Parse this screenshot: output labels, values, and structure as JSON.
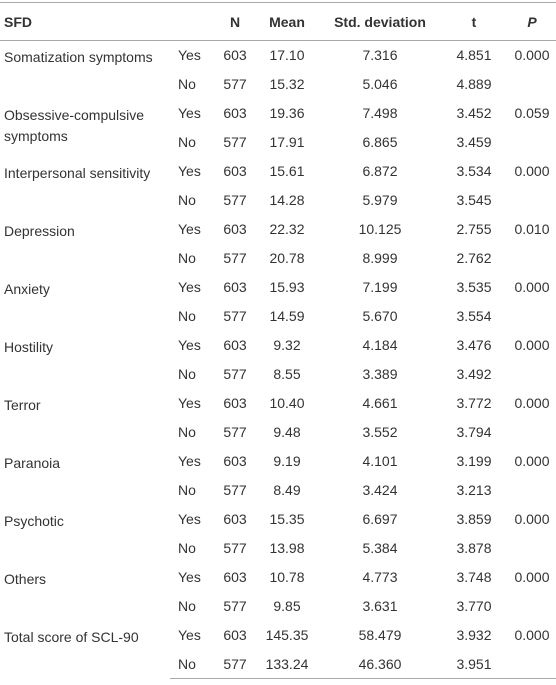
{
  "table": {
    "header": {
      "sfd": "SFD",
      "n": "N",
      "mean": "Mean",
      "sd": "Std. deviation",
      "t": "t",
      "p": "P"
    },
    "groups": [
      {
        "label": "Somatization symptoms",
        "p": "0.000",
        "rows": [
          {
            "group": "Yes",
            "n": "603",
            "mean": "17.10",
            "sd": "7.316",
            "t": "4.851"
          },
          {
            "group": "No",
            "n": "577",
            "mean": "15.32",
            "sd": "5.046",
            "t": "4.889"
          }
        ]
      },
      {
        "label": "Obsessive-compulsive symptoms",
        "p": "0.059",
        "rows": [
          {
            "group": "Yes",
            "n": "603",
            "mean": "19.36",
            "sd": "7.498",
            "t": "3.452"
          },
          {
            "group": "No",
            "n": "577",
            "mean": "17.91",
            "sd": "6.865",
            "t": "3.459"
          }
        ]
      },
      {
        "label": "Interpersonal sensitivity",
        "p": "0.000",
        "rows": [
          {
            "group": "Yes",
            "n": "603",
            "mean": "15.61",
            "sd": "6.872",
            "t": "3.534"
          },
          {
            "group": "No",
            "n": "577",
            "mean": "14.28",
            "sd": "5.979",
            "t": "3.545"
          }
        ]
      },
      {
        "label": "Depression",
        "p": "0.010",
        "rows": [
          {
            "group": "Yes",
            "n": "603",
            "mean": "22.32",
            "sd": "10.125",
            "t": "2.755"
          },
          {
            "group": "No",
            "n": "577",
            "mean": "20.78",
            "sd": "8.999",
            "t": "2.762"
          }
        ]
      },
      {
        "label": "Anxiety",
        "p": "0.000",
        "rows": [
          {
            "group": "Yes",
            "n": "603",
            "mean": "15.93",
            "sd": "7.199",
            "t": "3.535"
          },
          {
            "group": "No",
            "n": "577",
            "mean": "14.59",
            "sd": "5.670",
            "t": "3.554"
          }
        ]
      },
      {
        "label": "Hostility",
        "p": "0.000",
        "rows": [
          {
            "group": "Yes",
            "n": "603",
            "mean": "9.32",
            "sd": "4.184",
            "t": "3.476"
          },
          {
            "group": "No",
            "n": "577",
            "mean": "8.55",
            "sd": "3.389",
            "t": "3.492"
          }
        ]
      },
      {
        "label": "Terror",
        "p": "0.000",
        "rows": [
          {
            "group": "Yes",
            "n": "603",
            "mean": "10.40",
            "sd": "4.661",
            "t": "3.772"
          },
          {
            "group": "No",
            "n": "577",
            "mean": "9.48",
            "sd": "3.552",
            "t": "3.794"
          }
        ]
      },
      {
        "label": "Paranoia",
        "p": "0.000",
        "rows": [
          {
            "group": "Yes",
            "n": "603",
            "mean": "9.19",
            "sd": "4.101",
            "t": "3.199"
          },
          {
            "group": "No",
            "n": "577",
            "mean": "8.49",
            "sd": "3.424",
            "t": "3.213"
          }
        ]
      },
      {
        "label": "Psychotic",
        "p": "0.000",
        "rows": [
          {
            "group": "Yes",
            "n": "603",
            "mean": "15.35",
            "sd": "6.697",
            "t": "3.859"
          },
          {
            "group": "No",
            "n": "577",
            "mean": "13.98",
            "sd": "5.384",
            "t": "3.878"
          }
        ]
      },
      {
        "label": "Others",
        "p": "0.000",
        "rows": [
          {
            "group": "Yes",
            "n": "603",
            "mean": "10.78",
            "sd": "4.773",
            "t": "3.748"
          },
          {
            "group": "No",
            "n": "577",
            "mean": "9.85",
            "sd": "3.631",
            "t": "3.770"
          }
        ]
      },
      {
        "label": "Total score of SCL-90",
        "p": "0.000",
        "rows": [
          {
            "group": "Yes",
            "n": "603",
            "mean": "145.35",
            "sd": "58.479",
            "t": "3.932"
          },
          {
            "group": "No",
            "n": "577",
            "mean": "133.24",
            "sd": "46.360",
            "t": "3.951"
          }
        ]
      }
    ]
  }
}
